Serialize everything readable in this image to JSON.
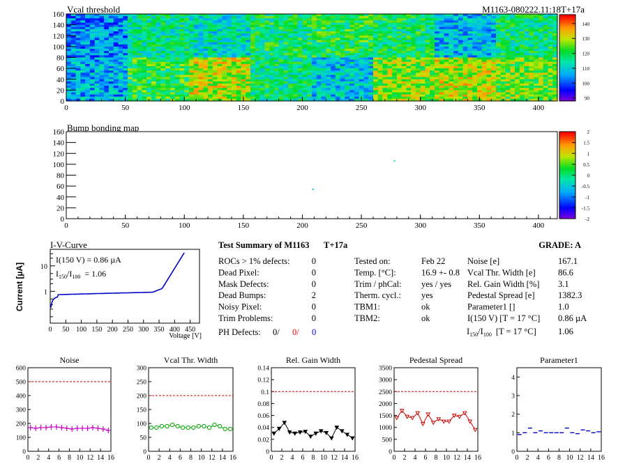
{
  "header": {
    "title": "Vcal threshold",
    "module_id": "M1163-080222.11:18T+17a"
  },
  "vcal_map": {
    "x_ticks": [
      "0",
      "50",
      "100",
      "150",
      "200",
      "250",
      "300",
      "350",
      "400"
    ],
    "y_ticks": [
      "0",
      "20",
      "40",
      "60",
      "80",
      "100",
      "120",
      "140",
      "160"
    ],
    "palette_ticks": [
      "90",
      "100",
      "110",
      "120",
      "130",
      "140"
    ],
    "xlim": [
      0,
      416
    ],
    "ylim": [
      0,
      160
    ],
    "zlim": [
      88,
      146
    ]
  },
  "bump_map": {
    "title": "Bump bonding map",
    "x_ticks": [
      "0",
      "50",
      "100",
      "150",
      "200",
      "250",
      "300",
      "350",
      "400"
    ],
    "y_ticks": [
      "0",
      "20",
      "40",
      "60",
      "80",
      "100",
      "120",
      "140",
      "160"
    ],
    "palette_ticks": [
      "-2",
      "-1.5",
      "-1",
      "-0.5",
      "0",
      "0.5",
      "1",
      "1.5",
      "2"
    ],
    "points": [
      {
        "x": 278,
        "y": 106,
        "color": "#00d8a8"
      },
      {
        "x": 209,
        "y": 54,
        "color": "#00b0e0"
      }
    ]
  },
  "iv_curve": {
    "title": "I-V-Curve",
    "ylabel": "Current [µA]",
    "xlabel": "Voltage [V]",
    "x_ticks": [
      "0",
      "50",
      "100",
      "150",
      "200",
      "250",
      "300",
      "350",
      "400",
      "450"
    ],
    "y_ticks": [
      "1",
      "10"
    ],
    "annot_i150": "I(150 V) = 0.86 µA",
    "annot_ratio_I": "I",
    "annot_ratio_sub1": "150",
    "annot_ratio_slash": "/I",
    "annot_ratio_sub2": "100",
    "annot_ratio_val": "= 1.06",
    "color": "#0000cc"
  },
  "summary": {
    "title": "Test Summary of M1163",
    "temp_label": "T+17a",
    "grade": "GRADE:  A",
    "col1": [
      {
        "label": "ROCs > 1% defects:",
        "value": "0"
      },
      {
        "label": "Dead Pixel:",
        "value": "0"
      },
      {
        "label": "Mask Defects:",
        "value": "0"
      },
      {
        "label": "Dead Bumps:",
        "value": "2"
      },
      {
        "label": "Noisy Pixel:",
        "value": "0"
      },
      {
        "label": "Trim Problems:",
        "value": "0"
      }
    ],
    "ph_label": "PH Defects:",
    "ph_values": [
      "0/",
      "0/",
      "0"
    ],
    "ph_colors": [
      "#000000",
      "#ff0000",
      "#0000ff"
    ],
    "col2": [
      {
        "label": "Tested on:",
        "value": "Feb 22"
      },
      {
        "label": "Temp. [°C]:",
        "value": "16.9 +- 0.8"
      },
      {
        "label": "Trim / phCal:",
        "value": "yes / yes"
      },
      {
        "label": "Therm. cycl.:",
        "value": "yes"
      },
      {
        "label": "TBM1:",
        "value": "ok"
      },
      {
        "label": "TBM2:",
        "value": "ok"
      }
    ],
    "col3": [
      {
        "label": "Noise [e]",
        "value": "167.1"
      },
      {
        "label": "Vcal Thr. Width [e]",
        "value": "86.6"
      },
      {
        "label": "Rel. Gain Width [%]",
        "value": "3.1"
      },
      {
        "label": "Pedestal Spread [e]",
        "value": "1382.3"
      },
      {
        "label": "Parameter1 []",
        "value": "1.0"
      },
      {
        "label": "I(150 V) [T = 17 °C]",
        "value": "0.86 µA"
      }
    ],
    "ratio_label": {
      "I": "I",
      "sub1": "150",
      "slash": "/I",
      "sub2": "100",
      "rest": "[T = 17 °C]",
      "value": "1.06"
    }
  },
  "chart_data": [
    {
      "type": "scatter",
      "title": "Noise",
      "x": [
        0,
        1,
        2,
        3,
        4,
        5,
        6,
        7,
        8,
        9,
        10,
        11,
        12,
        13,
        14,
        15
      ],
      "values": [
        170,
        165,
        170,
        170,
        175,
        175,
        170,
        165,
        160,
        165,
        165,
        165,
        170,
        165,
        160,
        150
      ],
      "ylim": [
        0,
        600
      ],
      "y_ticks": [
        0,
        100,
        200,
        300,
        400,
        500,
        600
      ],
      "xlim": [
        0,
        16
      ],
      "x_ticks": [
        0,
        2,
        4,
        6,
        8,
        10,
        12,
        14,
        16
      ],
      "limit": 500,
      "color": "#cc00cc",
      "marker": "plus"
    },
    {
      "type": "scatter",
      "title": "Vcal Thr. Width",
      "x": [
        0,
        1,
        2,
        3,
        4,
        5,
        6,
        7,
        8,
        9,
        10,
        11,
        12,
        13,
        14,
        15
      ],
      "values": [
        85,
        85,
        90,
        90,
        95,
        90,
        85,
        85,
        85,
        90,
        90,
        85,
        95,
        90,
        80,
        80
      ],
      "ylim": [
        0,
        300
      ],
      "y_ticks": [
        0,
        50,
        100,
        150,
        200,
        250,
        300
      ],
      "xlim": [
        0,
        16
      ],
      "x_ticks": [
        0,
        2,
        4,
        6,
        8,
        10,
        12,
        14,
        16
      ],
      "limit": 200,
      "color": "#00aa00",
      "marker": "circle"
    },
    {
      "type": "scatter",
      "title": "Rel. Gain Width",
      "x": [
        0,
        1,
        2,
        3,
        4,
        5,
        6,
        7,
        8,
        9,
        10,
        11,
        12,
        13,
        14,
        15
      ],
      "values": [
        0.03,
        0.038,
        0.048,
        0.032,
        0.03,
        0.032,
        0.033,
        0.025,
        0.03,
        0.034,
        0.031,
        0.022,
        0.04,
        0.034,
        0.028,
        0.022
      ],
      "ylim": [
        0,
        0.14
      ],
      "y_ticks": [
        0,
        0.02,
        0.04,
        0.06,
        0.08,
        0.1,
        0.12,
        0.14
      ],
      "xlim": [
        0,
        16
      ],
      "x_ticks": [
        0,
        2,
        4,
        6,
        8,
        10,
        12,
        14,
        16
      ],
      "limit": 0.1,
      "color": "#000000",
      "marker": "triangle"
    },
    {
      "type": "scatter",
      "title": "Pedestal Spread",
      "x": [
        0,
        1,
        2,
        3,
        4,
        5,
        6,
        7,
        8,
        9,
        10,
        11,
        12,
        13,
        14,
        15
      ],
      "values": [
        1400,
        1700,
        1450,
        1400,
        1600,
        1150,
        1550,
        1200,
        1350,
        1250,
        1250,
        1500,
        1450,
        1600,
        1250,
        900
      ],
      "ylim": [
        0,
        3500
      ],
      "y_ticks": [
        0,
        500,
        1000,
        1500,
        2000,
        2500,
        3000,
        3500
      ],
      "xlim": [
        0,
        16
      ],
      "x_ticks": [
        0,
        2,
        4,
        6,
        8,
        10,
        12,
        14,
        16
      ],
      "limit": 2500,
      "color": "#cc0000",
      "marker": "triangle"
    },
    {
      "type": "scatter",
      "title": "Parameter1",
      "x": [
        0,
        1,
        2,
        3,
        4,
        5,
        6,
        7,
        8,
        9,
        10,
        11,
        12,
        13,
        14,
        15
      ],
      "values": [
        0.9,
        1.0,
        1.25,
        1.0,
        1.1,
        1.0,
        1.0,
        1.0,
        1.0,
        1.25,
        1.0,
        0.95,
        1.15,
        1.1,
        1.0,
        1.05
      ],
      "ylim": [
        0,
        4.5
      ],
      "y_ticks": [
        0,
        1,
        2,
        3,
        4
      ],
      "xlim": [
        0,
        16
      ],
      "x_ticks": [
        0,
        2,
        4,
        6,
        8,
        10,
        12,
        14,
        16
      ],
      "limit": null,
      "color": "#0000cc",
      "marker": "dash"
    }
  ]
}
